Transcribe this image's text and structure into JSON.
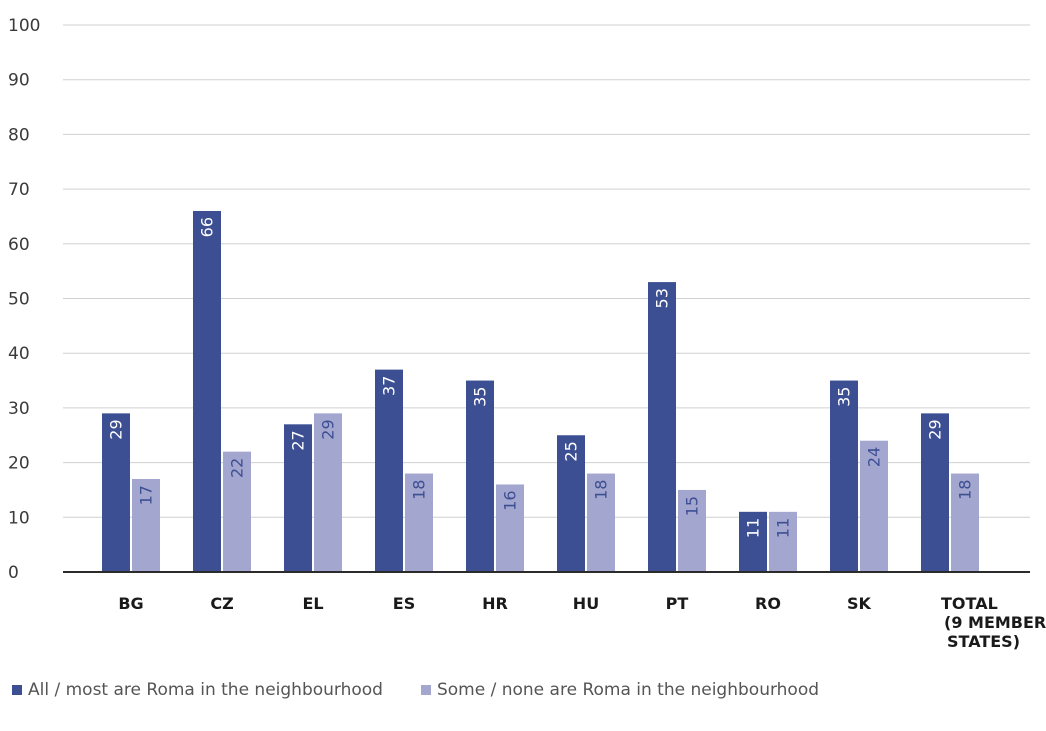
{
  "chart_data": {
    "type": "bar",
    "categories": [
      "BG",
      "CZ",
      "EL",
      "ES",
      "HR",
      "HU",
      "PT",
      "RO",
      "SK",
      "TOTAL\n(9 MEMBER\nSTATES)"
    ],
    "series": [
      {
        "name": "All / most are Roma in the neighbourhood",
        "color": "#3d4f93",
        "values": [
          29,
          66,
          27,
          37,
          35,
          25,
          53,
          11,
          35,
          29
        ],
        "label_color": "#ffffff"
      },
      {
        "name": "Some / none are Roma in the neighbourhood",
        "color": "#a3a6cf",
        "values": [
          17,
          22,
          29,
          18,
          16,
          18,
          15,
          11,
          24,
          18
        ],
        "label_color": "#3d4f93"
      }
    ],
    "ylim": [
      0,
      100
    ],
    "yticks": [
      0,
      10,
      20,
      30,
      40,
      50,
      60,
      70,
      80,
      90,
      100
    ],
    "grid": true,
    "legend": "bottom",
    "title": "",
    "xlabel": "",
    "ylabel": ""
  }
}
